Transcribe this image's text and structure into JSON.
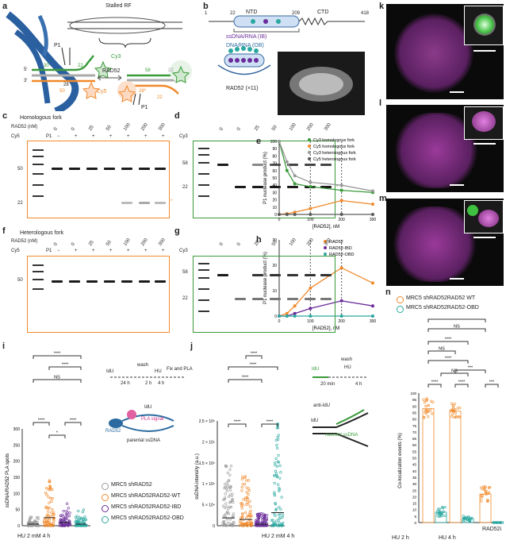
{
  "panels": {
    "a": {
      "letter": "a",
      "stalled": "Stalled RF",
      "p1": "P1",
      "cy3": "Cy3",
      "cy5": "Cy5",
      "rad52": "RAD52",
      "n5": "5′",
      "n3": "3′",
      "l30": "30",
      "l22": "22",
      "l28": "28",
      "l50": "50",
      "r58": "58",
      "r22": "22",
      "r28": "28*",
      "r22b": "22",
      "rp1": "P1"
    },
    "b": {
      "letter": "b",
      "n1": "1",
      "n22": "22",
      "n209": "209",
      "n418": "418",
      "ntd": "NTD",
      "ctd": "CTD",
      "ib": "ssDNA/RNA (IB)",
      "ob": "DNA/RNA (OB)",
      "rad": "RAD52 (×11)"
    },
    "c": {
      "letter": "c",
      "title": "Homologous fork",
      "rad_row": "RAD52 (nM)",
      "p1_row": "P1",
      "cy": "Cy5",
      "conc": [
        "0",
        "0",
        "25",
        "50",
        "100",
        "200",
        "300"
      ],
      "p1": [
        "−",
        "+",
        "+",
        "+",
        "+",
        "+",
        "+"
      ],
      "m50": "50",
      "m22": "22",
      "star": "*"
    },
    "d": {
      "letter": "d",
      "cy": "Cy3",
      "conc": [
        "0",
        "0",
        "25",
        "50",
        "100",
        "200",
        "300"
      ],
      "m58": "58",
      "m22": "22",
      "star": "*"
    },
    "f": {
      "letter": "f",
      "title": "Heterologous fork",
      "rad_row": "RAD52 (nM)",
      "p1_row": "P1",
      "cy": "Cy5",
      "conc": [
        "0",
        "0",
        "25",
        "50",
        "100",
        "200",
        "300"
      ],
      "p1": [
        "−",
        "+",
        "+",
        "+",
        "+",
        "+",
        "+"
      ],
      "m50": "50"
    },
    "g": {
      "letter": "g",
      "cy": "Cy3",
      "conc": [
        "0",
        "0",
        "25",
        "50",
        "100",
        "200",
        "300"
      ],
      "m58": "58",
      "m22": "22"
    },
    "k": {
      "letter": "k"
    },
    "l": {
      "letter": "l"
    },
    "m": {
      "letter": "m"
    },
    "i": {
      "letter": "i",
      "ylabel": "ssDNA/RAD52 PLA spots",
      "xlabel": "HU 2 mM 4 h",
      "sig": [
        "****",
        "****",
        "NS",
        "****",
        "*",
        "****"
      ],
      "scheme": {
        "idu": "IdU",
        "wash": "wash",
        "hu": "HU",
        "fix": "Fix and PLA",
        "t1": "24 h",
        "t2": "2 h",
        "t3": "4 h",
        "idu2": "IdU",
        "pla": "PLA signal",
        "rad": "RAD52",
        "parental": "parental ssDNA"
      },
      "legend": [
        "MRC5 shRAD52",
        "MRC5 shRAD52RAD52-WT",
        "MRC5 shRAD52RAD52-IBD",
        "MRC5 shRAD52RAD52-OBD"
      ],
      "yticks": [
        "0",
        "50",
        "100",
        "150",
        "200",
        "250",
        "300"
      ]
    },
    "j": {
      "letter": "j",
      "ylabel": "ssDNA intensity (a.u.)",
      "xlabel": "HU 2 mM 4 h",
      "sig": [
        "****",
        "****",
        "****",
        "****",
        "****"
      ],
      "scheme": {
        "idu": "IdU",
        "wash": "wash",
        "hu": "HU",
        "t1": "20 min",
        "t2": "4 h",
        "anti": "anti-IdU",
        "idu2": "IdU",
        "nascent": "nascent ssDNA"
      },
      "yticks": [
        "0",
        "5 × 10⁴",
        "1 × 10⁵",
        "1.5 × 10⁵",
        "2 × 10⁵",
        "2.5 × 10⁵"
      ]
    },
    "n": {
      "letter": "n",
      "legend": [
        "MRC5 shRAD52RAD52 WT",
        "MRC5 shRAD52RAD52-OBD"
      ],
      "ylabel": "Co-localization events (%)",
      "x1": "HU 2 h",
      "x2": "HU 4 h",
      "rad52i": "RAD52i",
      "sig": [
        "***",
        "NS",
        "****",
        "NS",
        "****",
        "NS",
        "***",
        "****",
        "****",
        "***"
      ],
      "yticks": [
        "0",
        "5",
        "10",
        "15",
        "20",
        "25",
        "30",
        "35",
        "40",
        "45",
        "50",
        "55",
        "60",
        "65",
        "70",
        "75",
        "80",
        "85",
        "90",
        "95",
        "100"
      ]
    }
  },
  "chart_data": [
    {
      "type": "line",
      "panel": "e",
      "xlabel": "[RAD52], nM",
      "ylabel": "P1 nuclease product (%)",
      "x": [
        0,
        25,
        50,
        100,
        200,
        300
      ],
      "xlim": [
        0,
        300
      ],
      "ylim": [
        0,
        100
      ],
      "xticks": [
        "0",
        "100",
        "200",
        "300"
      ],
      "yticks": [
        "0",
        "10",
        "20",
        "30",
        "40",
        "50",
        "60",
        "70",
        "80",
        "90",
        "100"
      ],
      "series": [
        {
          "name": "Cy3 homologous fork",
          "color": "#3a9a3a",
          "values": [
            100,
            60,
            42,
            38,
            33,
            30
          ]
        },
        {
          "name": "Cy5 homologous fork",
          "color": "#f08a2c",
          "values": [
            0,
            1,
            3,
            8,
            19,
            14
          ]
        },
        {
          "name": "Cy3 heterologous fork",
          "color": "#9a9a9a",
          "values": [
            100,
            72,
            53,
            44,
            40,
            32
          ]
        },
        {
          "name": "Cy5 heterologous fork",
          "color": "#5a5a5a",
          "values": [
            0,
            0,
            0,
            0,
            0,
            0
          ]
        }
      ]
    },
    {
      "type": "line",
      "panel": "h",
      "xlabel": "[RAD52], nM",
      "ylabel": "P1 nuclease product (%)",
      "x": [
        0,
        25,
        50,
        100,
        200,
        300
      ],
      "xlim": [
        0,
        300
      ],
      "ylim": [
        0,
        30
      ],
      "xticks": [
        "0",
        "100",
        "200",
        "300"
      ],
      "yticks": [
        "0",
        "10",
        "20",
        "30"
      ],
      "series": [
        {
          "name": "RAD52",
          "color": "#f08a2c",
          "values": [
            0,
            1,
            4,
            11,
            19,
            13
          ]
        },
        {
          "name": "RAD52-IBD",
          "color": "#6a2c9a",
          "values": [
            0,
            0,
            1,
            3,
            6,
            4
          ]
        },
        {
          "name": "RAD52-OBD",
          "color": "#2aa8a0",
          "values": [
            0,
            0,
            0,
            0,
            0,
            0
          ]
        }
      ]
    }
  ],
  "colors": {
    "green": "#3a9a3a",
    "orange": "#f08a2c",
    "grey": "#9a9a9a",
    "purple": "#6a2c9a",
    "teal": "#2aa8a0",
    "magenta": "#c040c0"
  }
}
